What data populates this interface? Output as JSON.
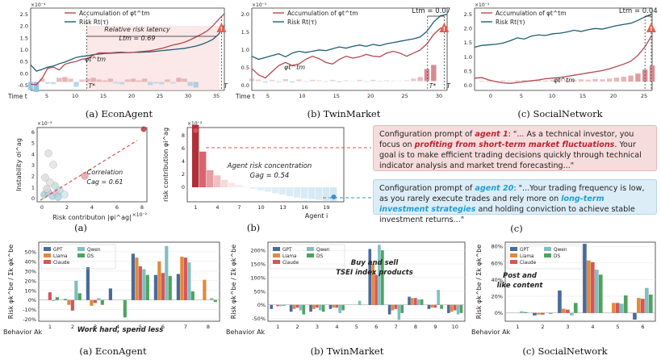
{
  "top_row": [
    {
      "id": "econ",
      "caption": "(a) EconAgent",
      "legend": [
        "Accumulation of φt^tm",
        "Risk Rt(τ)"
      ],
      "scale": "×10⁻⁴",
      "yticks": [
        "-0.5",
        "0.0",
        "0.5",
        "1.0",
        "1.5",
        "2.0",
        "2.5"
      ],
      "xticks": [
        "5",
        "10",
        "15",
        "20",
        "25",
        "30",
        "35"
      ],
      "xlabel": "Time t",
      "annotation": "Relative risk latency",
      "latency": "Ltm = 0.69",
      "series_label": "φt^tm",
      "tstar": "T*",
      "tend": "T"
    },
    {
      "id": "twin",
      "caption": "(b) TwinMarket",
      "legend": [
        "Accumulation of φt^tm",
        "Risk Rt(τ)"
      ],
      "scale": "×10⁻¹",
      "yticks": [
        "0.0",
        "0.5",
        "1.0",
        "1.5",
        "2.0"
      ],
      "xticks": [
        "5",
        "10",
        "15",
        "20",
        "25",
        "30"
      ],
      "xlabel": "Time t",
      "latency": "Ltm = 0.07",
      "series_label": "φt^tm",
      "tstar": "T*",
      "tend": "T"
    },
    {
      "id": "social",
      "caption": "(c) SocialNetwork",
      "legend": [
        "Accumulation of φt^tm",
        "Risk Rt(τ)"
      ],
      "scale": "×10⁻¹",
      "yticks": [
        "0.0",
        "0.5",
        "1.0",
        "1.5",
        "2.0",
        "2.5"
      ],
      "xticks": [
        "0",
        "5",
        "10",
        "15",
        "20",
        "25"
      ],
      "latency": "Ltm = 0.04",
      "series_label": "φt^tm"
    }
  ],
  "mid_scatter": {
    "caption": "(a)",
    "scale": "×10⁻³",
    "xscale": "×10⁻²",
    "yticks": [
      "0",
      "1",
      "2",
      "3",
      "4",
      "5",
      "6"
    ],
    "xticks": [
      "0",
      "2",
      "4",
      "6",
      "8"
    ],
    "ylabel": "Instability σi^ag",
    "xlabel": "Risk contributon |φi^ag|",
    "annotation": "Correlation",
    "value": "Cag = 0.61"
  },
  "mid_bar": {
    "caption": "(b)",
    "scale": "×10⁻²",
    "yticks": [
      "0",
      "2",
      "4",
      "6",
      "8"
    ],
    "xticks": [
      "1",
      "4",
      "7",
      "10",
      "13",
      "16",
      "19"
    ],
    "ylabel": "risk contribution φi^ag",
    "xlabel": "Agent i",
    "annotation": "Agent risk concentration",
    "value": "Gag = 0.54"
  },
  "prompts": {
    "caption": "(c)",
    "agent1": {
      "pre": "Configuration prompt of ",
      "agent": "agent 1",
      "mid": ": \"... As a technical investor, you focus on ",
      "hl": "profiting from short-term market fluctuations",
      "post": ". Your goal is to make efficient trading decisions quickly through technical indicator analysis and market trend forecasting...\""
    },
    "agent20": {
      "pre": "Configuration prompt of ",
      "agent": "agent 20",
      "mid": ": \"...Your trading frequency is low, as you rarely execute trades and rely more on ",
      "hl": "long-term investment strategies",
      "post": " and holding conviction to achieve stable investment returns...\""
    }
  },
  "colors": {
    "GPT": "#4a6a9b",
    "Llama": "#e08a3c",
    "Claude": "#d6555a",
    "Qwen": "#7fbfbf",
    "DS": "#4fa35e"
  },
  "chart_data": [
    {
      "type": "bar",
      "title": "",
      "caption": "(a) EconAgent",
      "xlabel": "Behavior Ak",
      "ylabel": "Risk φk^be / Σk φk^be",
      "yticks": [
        "-20%",
        "-10%",
        "0%",
        "10%",
        "20%",
        "30%",
        "40%",
        "50%"
      ],
      "ylim": [
        -22,
        60
      ],
      "categories": [
        "1",
        "2",
        "3",
        "4",
        "5",
        "6",
        "7",
        "8"
      ],
      "legend": [
        "GPT",
        "Llama",
        "Claude",
        "Qwen",
        "DS"
      ],
      "annotation": "Work hard, spend less",
      "series": [
        {
          "name": "GPT",
          "values": [
            0,
            1,
            34,
            12,
            48,
            26,
            27,
            0
          ]
        },
        {
          "name": "Llama",
          "values": [
            0,
            -5,
            -6,
            0,
            44,
            40,
            45,
            21
          ]
        },
        {
          "name": "Claude",
          "values": [
            8,
            -11,
            -3,
            0,
            35,
            28,
            44,
            0
          ]
        },
        {
          "name": "Qwen",
          "values": [
            -1,
            20,
            2,
            0,
            32,
            56,
            39,
            2
          ]
        },
        {
          "name": "DS",
          "values": [
            3,
            7,
            -5,
            -18,
            26,
            25,
            9,
            -2
          ]
        }
      ]
    },
    {
      "type": "bar",
      "title": "",
      "caption": "(b) TwinMarket",
      "xlabel": "Behavior Ak",
      "ylabel": "Risk φk^be / Σk φk^be",
      "yticks": [
        "-50%",
        "0%",
        "50%",
        "100%",
        "150%",
        "200%"
      ],
      "ylim": [
        -60,
        230
      ],
      "categories": [
        "1",
        "2",
        "3",
        "4",
        "5",
        "6",
        "7",
        "8",
        "9",
        "10"
      ],
      "legend": [
        "GPT",
        "Llama",
        "Claude",
        "Qwen",
        "DS"
      ],
      "annotation": "Buy and sell TSEI index products",
      "series": [
        {
          "name": "GPT",
          "values": [
            -15,
            -25,
            -25,
            -15,
            0,
            205,
            -35,
            30,
            -15,
            -30
          ]
        },
        {
          "name": "Llama",
          "values": [
            0,
            -15,
            -15,
            -10,
            0,
            150,
            -20,
            25,
            -10,
            -25
          ]
        },
        {
          "name": "Claude",
          "values": [
            -5,
            -10,
            -10,
            -10,
            0,
            110,
            -15,
            25,
            -10,
            -20
          ]
        },
        {
          "name": "Qwen",
          "values": [
            -5,
            -20,
            -20,
            -30,
            15,
            220,
            -55,
            20,
            55,
            -35
          ]
        },
        {
          "name": "DS",
          "values": [
            -3,
            -35,
            -25,
            -20,
            0,
            200,
            -30,
            20,
            -15,
            -30
          ]
        }
      ]
    },
    {
      "type": "bar",
      "title": "",
      "caption": "(c) SocialNetwork",
      "xlabel": "Behavior Ak",
      "ylabel": "Risk φk^be / Σk φk^be",
      "yticks": [
        "0%",
        "20%",
        "40%",
        "60%",
        "80%"
      ],
      "ylim": [
        -10,
        85
      ],
      "categories": [
        "1",
        "2",
        "3",
        "4",
        "5",
        "6"
      ],
      "legend": [
        "GPT",
        "Llama",
        "Claude",
        "Qwen",
        "DS"
      ],
      "annotation": "Post and like content",
      "series": [
        {
          "name": "GPT",
          "values": [
            0,
            -3,
            27,
            83,
            0,
            -8
          ]
        },
        {
          "name": "Llama",
          "values": [
            0,
            -2,
            5,
            63,
            12,
            18
          ]
        },
        {
          "name": "Claude",
          "values": [
            0,
            -2,
            4,
            61,
            12,
            17
          ]
        },
        {
          "name": "Qwen",
          "values": [
            2,
            0,
            -3,
            52,
            11,
            30
          ]
        },
        {
          "name": "DS",
          "values": [
            1,
            -1,
            12,
            46,
            21,
            22
          ]
        }
      ]
    }
  ]
}
